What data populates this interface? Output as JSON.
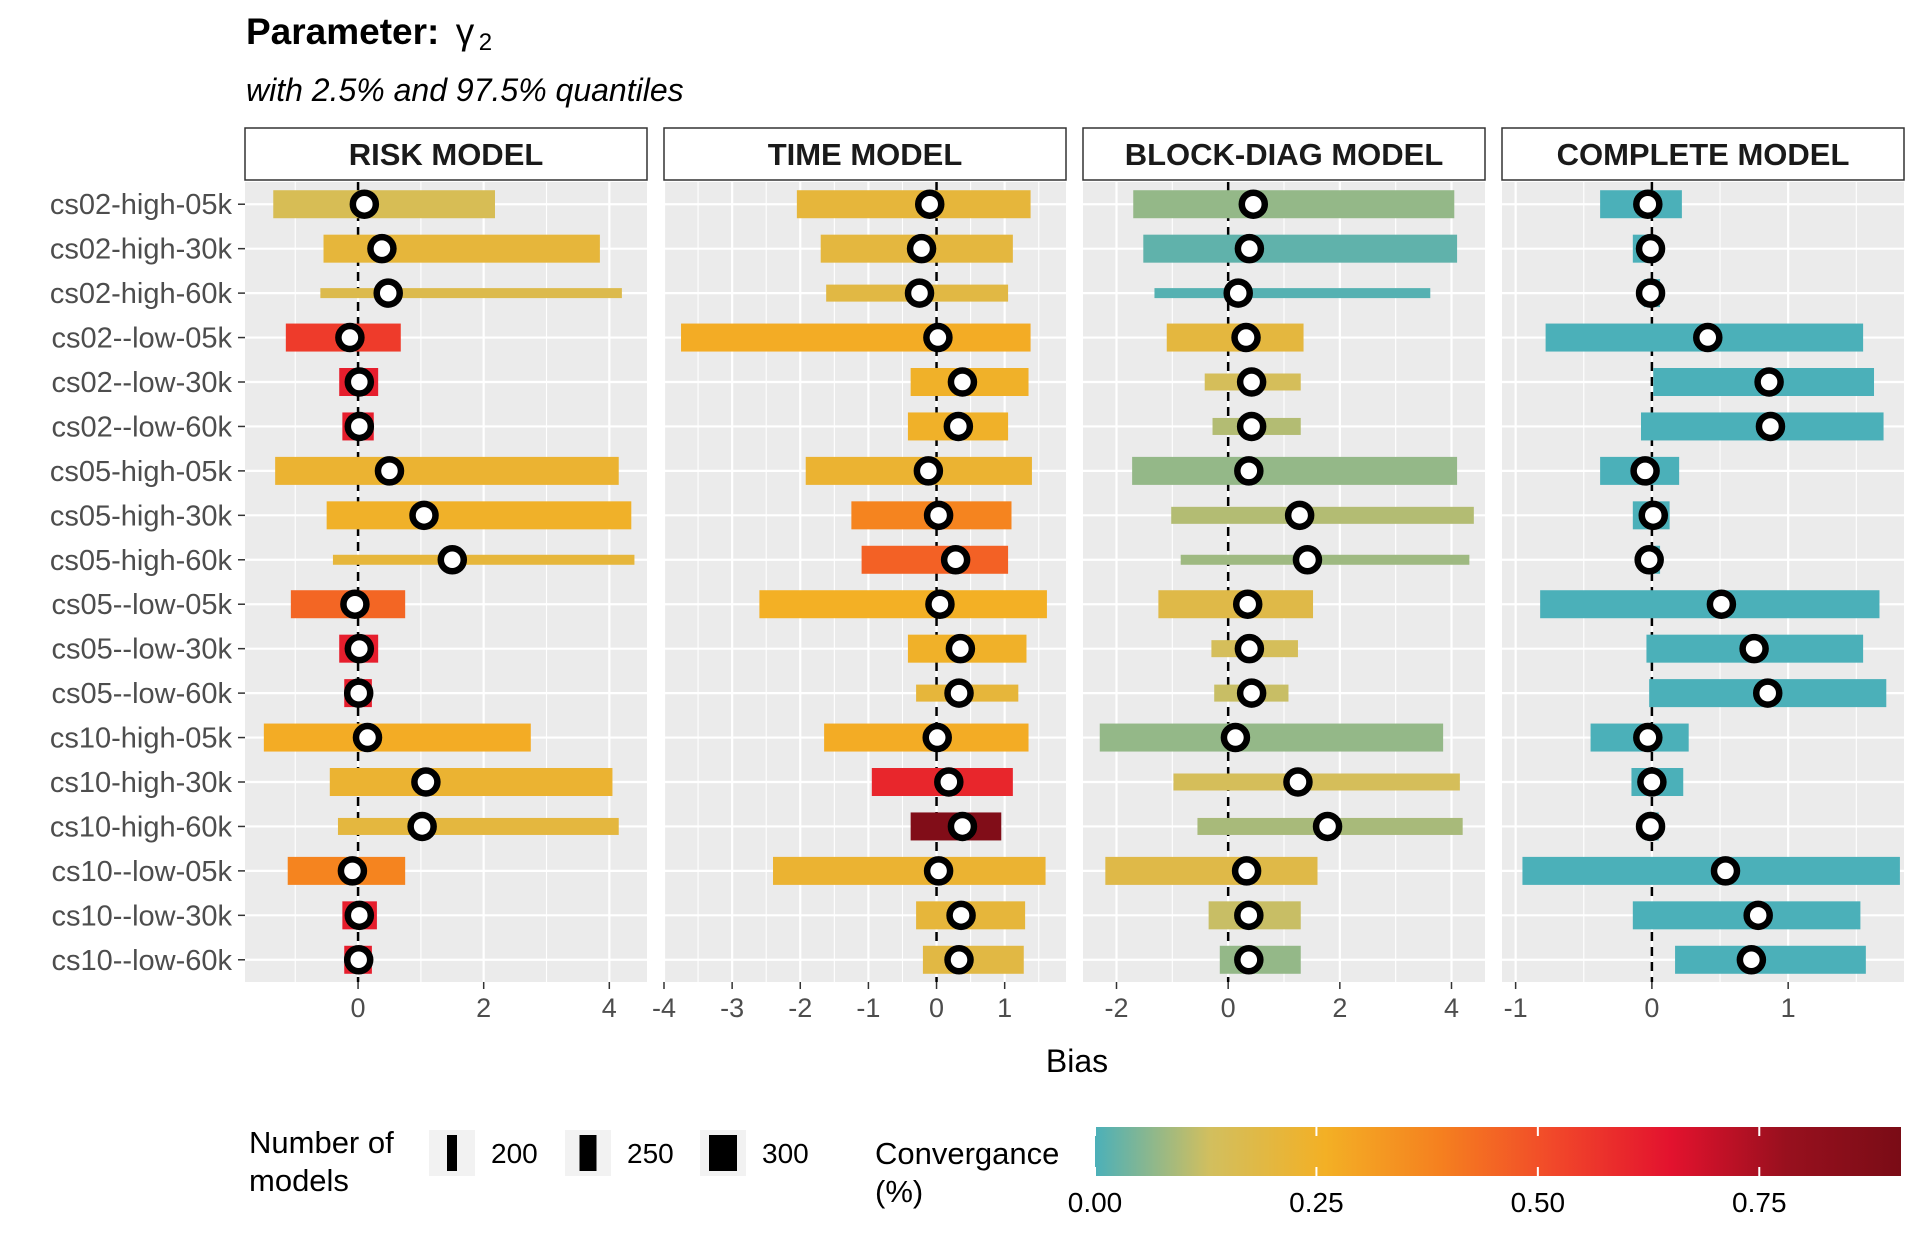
{
  "chart_data": {
    "type": "bar",
    "title_prefix": "Parameter:",
    "title_param": "γ",
    "title_param_sub": "2",
    "subtitle": "with 2.5% and 97.5% quantiles",
    "xlabel": "Bias",
    "categories": [
      "cs02-high-05k",
      "cs02-high-30k",
      "cs02-high-60k",
      "cs02--low-05k",
      "cs02--low-30k",
      "cs02--low-60k",
      "cs05-high-05k",
      "cs05-high-30k",
      "cs05-high-60k",
      "cs05--low-05k",
      "cs05--low-30k",
      "cs05--low-60k",
      "cs10-high-05k",
      "cs10-high-30k",
      "cs10-high-60k",
      "cs10--low-05k",
      "cs10--low-30k",
      "cs10--low-60k"
    ],
    "reference_line": 0,
    "panels": [
      {
        "name": "RISK MODEL",
        "xlim": [
          -1.8,
          4.6
        ],
        "xticks": [
          0,
          2,
          4
        ],
        "lo": [
          -1.35,
          -0.55,
          -0.6,
          -1.15,
          -0.3,
          -0.25,
          -1.32,
          -0.5,
          -0.4,
          -1.07,
          -0.3,
          -0.22,
          -1.5,
          -0.45,
          -0.32,
          -1.12,
          -0.25,
          -0.22
        ],
        "hi": [
          2.18,
          3.85,
          4.2,
          0.68,
          0.32,
          0.25,
          4.15,
          4.35,
          4.4,
          0.75,
          0.32,
          0.22,
          2.75,
          4.05,
          4.15,
          0.75,
          0.3,
          0.22
        ],
        "mean": [
          0.1,
          0.38,
          0.48,
          -0.13,
          0.02,
          0.02,
          0.5,
          1.05,
          1.5,
          -0.05,
          0.02,
          0.01,
          0.15,
          1.08,
          1.02,
          -0.09,
          0.02,
          0.01
        ],
        "convergence": [
          0.15,
          0.21,
          0.17,
          0.55,
          0.62,
          0.62,
          0.23,
          0.25,
          0.21,
          0.45,
          0.62,
          0.62,
          0.27,
          0.23,
          0.2,
          0.38,
          0.62,
          0.62
        ],
        "n_models": [
          300,
          300,
          200,
          300,
          300,
          300,
          300,
          300,
          200,
          300,
          300,
          300,
          300,
          300,
          250,
          300,
          300,
          300
        ]
      },
      {
        "name": "TIME MODEL",
        "xlim": [
          -4.0,
          1.9
        ],
        "xticks": [
          -4,
          -3,
          -2,
          -1,
          0,
          1
        ],
        "lo": [
          -2.05,
          -1.7,
          -1.62,
          -3.75,
          -0.38,
          -0.42,
          -1.92,
          -1.25,
          -1.1,
          -2.6,
          -0.42,
          -0.3,
          -1.65,
          -0.95,
          -0.38,
          -2.4,
          -0.3,
          -0.2
        ],
        "hi": [
          1.38,
          1.12,
          1.05,
          1.38,
          1.35,
          1.05,
          1.4,
          1.1,
          1.05,
          1.62,
          1.32,
          1.2,
          1.35,
          1.12,
          0.95,
          1.6,
          1.3,
          1.28
        ],
        "mean": [
          -0.1,
          -0.22,
          -0.25,
          0.02,
          0.38,
          0.32,
          -0.12,
          0.03,
          0.28,
          0.05,
          0.35,
          0.33,
          0.01,
          0.18,
          0.38,
          0.03,
          0.36,
          0.33
        ],
        "convergence": [
          0.21,
          0.2,
          0.19,
          0.27,
          0.25,
          0.25,
          0.23,
          0.38,
          0.46,
          0.26,
          0.25,
          0.21,
          0.27,
          0.6,
          0.88,
          0.23,
          0.21,
          0.19
        ],
        "n_models": [
          300,
          300,
          250,
          300,
          300,
          300,
          300,
          300,
          300,
          300,
          300,
          250,
          300,
          300,
          300,
          300,
          300,
          300
        ]
      },
      {
        "name": "BLOCK-DIAG MODEL",
        "xlim": [
          -2.6,
          4.6
        ],
        "xticks": [
          -2,
          0,
          2,
          4
        ],
        "lo": [
          -1.7,
          -1.52,
          -1.32,
          -1.1,
          -0.42,
          -0.28,
          -1.72,
          -1.02,
          -0.85,
          -1.25,
          -0.3,
          -0.25,
          -2.3,
          -0.98,
          -0.55,
          -2.2,
          -0.35,
          -0.15
        ],
        "hi": [
          4.05,
          4.1,
          3.62,
          1.35,
          1.3,
          1.3,
          4.1,
          4.4,
          4.32,
          1.52,
          1.25,
          1.08,
          3.85,
          4.15,
          4.2,
          1.6,
          1.3,
          1.3
        ],
        "mean": [
          0.45,
          0.38,
          0.18,
          0.32,
          0.42,
          0.42,
          0.37,
          1.28,
          1.42,
          0.35,
          0.38,
          0.42,
          0.13,
          1.25,
          1.78,
          0.33,
          0.37,
          0.37
        ],
        "convergence": [
          0.07,
          0.02,
          0.01,
          0.2,
          0.14,
          0.1,
          0.07,
          0.1,
          0.08,
          0.18,
          0.14,
          0.12,
          0.07,
          0.14,
          0.09,
          0.18,
          0.12,
          0.07
        ],
        "n_models": [
          300,
          300,
          200,
          300,
          250,
          250,
          300,
          250,
          200,
          300,
          250,
          250,
          300,
          250,
          250,
          300,
          300,
          300
        ]
      },
      {
        "name": "COMPLETE MODEL",
        "xlim": [
          -1.1,
          1.85
        ],
        "xticks": [
          -1,
          0,
          1
        ],
        "lo": [
          -0.38,
          -0.14,
          -0.06,
          -0.78,
          0.01,
          -0.08,
          -0.38,
          -0.14,
          -0.05,
          -0.82,
          -0.04,
          -0.02,
          -0.45,
          -0.15,
          -0.05,
          -0.95,
          -0.14,
          0.17
        ],
        "hi": [
          0.22,
          0.03,
          0.06,
          1.55,
          1.63,
          1.7,
          0.2,
          0.13,
          0.06,
          1.67,
          1.55,
          1.72,
          0.27,
          0.23,
          0.05,
          1.82,
          1.53,
          1.57
        ],
        "mean": [
          -0.03,
          -0.01,
          -0.01,
          0.41,
          0.86,
          0.87,
          -0.05,
          0.01,
          -0.02,
          0.51,
          0.75,
          0.85,
          -0.03,
          0.0,
          -0.01,
          0.54,
          0.78,
          0.73
        ],
        "convergence": [
          0,
          0,
          0,
          0,
          0,
          0,
          0,
          0,
          0,
          0,
          0,
          0,
          0,
          0,
          0,
          0,
          0,
          0
        ],
        "n_models": [
          300,
          300,
          300,
          300,
          300,
          300,
          300,
          300,
          300,
          300,
          300,
          300,
          300,
          300,
          300,
          300,
          300,
          300
        ]
      }
    ],
    "legend_size": {
      "title": "Number of models",
      "title_lines": [
        "Number of",
        "models"
      ],
      "entries": [
        200,
        250,
        300
      ]
    },
    "legend_color": {
      "title": "Convergance (%)",
      "title_lines": [
        "Convergance",
        "(%)"
      ],
      "ticks": [
        0.0,
        0.25,
        0.5,
        0.75
      ],
      "tick_labels": [
        "0.00",
        "0.25",
        "0.50",
        "0.75"
      ],
      "max": 0.91,
      "stops": [
        "#4bb0b9",
        "#d2bf5e",
        "#f3b025",
        "#f5801f",
        "#f1472a",
        "#e3122e",
        "#98101e",
        "#7a0c16"
      ]
    },
    "colors": {
      "panel_bg": "#ebebeb",
      "grid": "#ffffff",
      "point_fill": "#ffffff",
      "point_stroke": "#000000"
    }
  }
}
